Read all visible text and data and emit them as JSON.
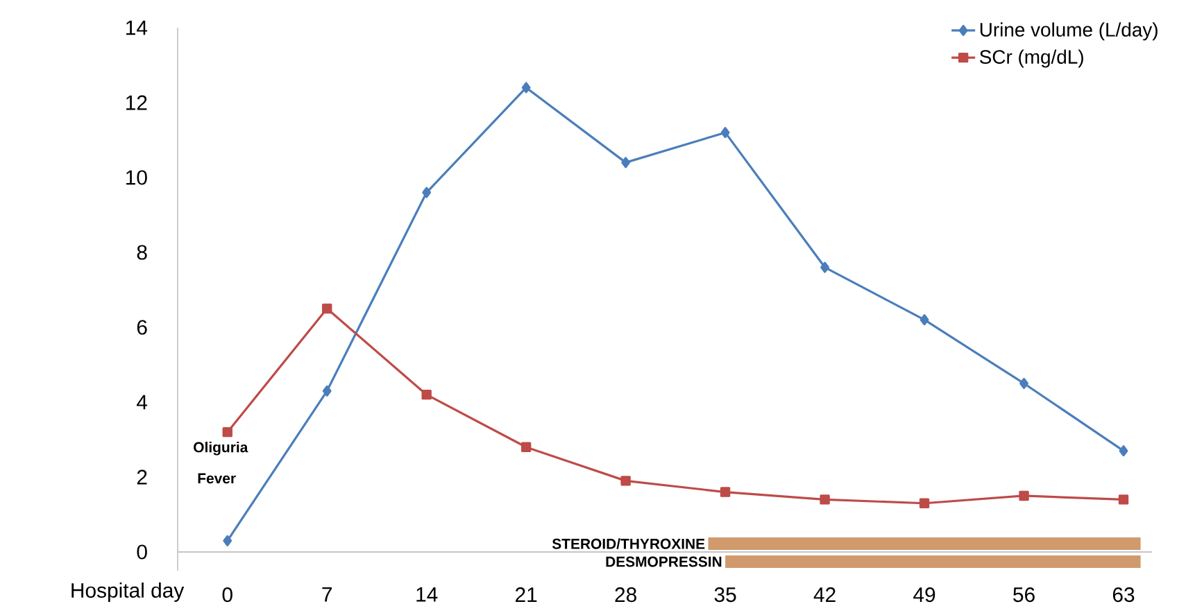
{
  "chart_data": {
    "type": "line",
    "xlabel": "Hospital day",
    "x": [
      0,
      7,
      14,
      21,
      28,
      35,
      42,
      49,
      56,
      63
    ],
    "series": [
      {
        "name": "Urine volume (L/day)",
        "color": "#4a7ebb",
        "marker": "diamond",
        "values": [
          0.3,
          4.3,
          9.6,
          12.4,
          10.4,
          11.2,
          7.6,
          6.2,
          4.5,
          2.7
        ]
      },
      {
        "name": "SCr (mg/dL)",
        "color": "#be4b48",
        "marker": "square",
        "values": [
          3.2,
          6.5,
          4.2,
          2.8,
          1.9,
          1.6,
          1.4,
          1.3,
          1.5,
          1.4
        ]
      },
      {
        "name": "STEROID/THYROXINE",
        "color": "#d09a6c",
        "marker": "none",
        "x": [
          33.8,
          64.2
        ],
        "values": [
          0.22,
          0.22
        ]
      },
      {
        "name": "DESMOPRESSIN",
        "color": "#d09a6c",
        "marker": "none",
        "x": [
          35,
          64.2
        ],
        "values": [
          -0.26,
          -0.26
        ]
      }
    ],
    "xlim": [
      -3.5,
      65
    ],
    "xticks": [
      0,
      7,
      14,
      21,
      28,
      35,
      42,
      49,
      56,
      63
    ],
    "ylim": [
      -0.5,
      14
    ],
    "yticks": [
      0,
      2,
      4,
      6,
      8,
      10,
      12,
      14
    ],
    "annotations": [
      "Oliguria",
      "Fever"
    ],
    "legend": "top right",
    "grid": false
  }
}
